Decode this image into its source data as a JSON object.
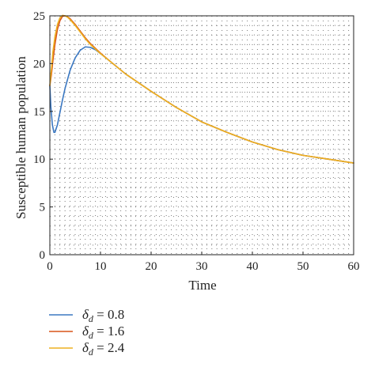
{
  "chart_data": {
    "type": "line",
    "xlabel": "Time",
    "ylabel": "Susceptible human population",
    "xlim": [
      0,
      60
    ],
    "ylim": [
      0,
      25
    ],
    "xticks": [
      0,
      10,
      20,
      30,
      40,
      50,
      60
    ],
    "yticks": [
      0,
      5,
      10,
      15,
      20,
      25
    ],
    "grid": "dotted",
    "legend_position": "bottom-left-outside",
    "series": [
      {
        "name": "δd = 0.8",
        "legend_symbol": "δ",
        "legend_subscript": "d",
        "legend_value": " = 0.8",
        "color": "#3b78c2",
        "x": [
          0,
          0.2,
          0.5,
          0.8,
          1.0,
          1.5,
          2,
          2.5,
          3,
          4,
          5,
          6,
          7,
          8,
          9,
          10,
          12,
          15,
          20,
          25,
          30,
          35,
          40,
          45,
          50,
          55,
          60
        ],
        "y": [
          17.7,
          15.5,
          13.6,
          12.8,
          12.8,
          13.6,
          14.9,
          16.2,
          17.4,
          19.3,
          20.6,
          21.4,
          21.75,
          21.7,
          21.45,
          21.05,
          20.2,
          18.9,
          17.1,
          15.4,
          13.9,
          12.8,
          11.8,
          11.0,
          10.4,
          10.0,
          9.6
        ]
      },
      {
        "name": "δd = 1.6",
        "legend_symbol": "δ",
        "legend_subscript": "d",
        "legend_value": " = 1.6",
        "color": "#d95319",
        "x": [
          0,
          0.3,
          0.6,
          1.0,
          1.5,
          2,
          2.5,
          3,
          3.5,
          4,
          5,
          6,
          7,
          8,
          10,
          12,
          15,
          20,
          25,
          30,
          35,
          40,
          45,
          50,
          55,
          60
        ],
        "y": [
          17.7,
          18.8,
          20.3,
          22.0,
          23.6,
          24.5,
          24.95,
          25.0,
          24.9,
          24.7,
          24.1,
          23.4,
          22.7,
          22.1,
          21.1,
          20.2,
          18.9,
          17.1,
          15.4,
          13.9,
          12.8,
          11.8,
          11.0,
          10.4,
          10.0,
          9.6
        ]
      },
      {
        "name": "δd = 2.4",
        "legend_symbol": "δ",
        "legend_subscript": "d",
        "legend_value": " = 2.4",
        "color": "#edb120",
        "x": [
          0,
          0.3,
          0.6,
          1.0,
          1.5,
          2,
          2.5,
          3,
          3.5,
          4,
          5,
          6,
          7,
          8,
          10,
          12,
          15,
          20,
          25,
          30,
          35,
          40,
          45,
          50,
          55,
          60
        ],
        "y": [
          17.7,
          19.4,
          21.2,
          22.8,
          24.1,
          24.8,
          25.05,
          25.0,
          24.85,
          24.6,
          24.0,
          23.3,
          22.6,
          22.0,
          21.05,
          20.2,
          18.9,
          17.1,
          15.4,
          13.9,
          12.8,
          11.8,
          11.0,
          10.4,
          10.0,
          9.6
        ]
      }
    ]
  }
}
